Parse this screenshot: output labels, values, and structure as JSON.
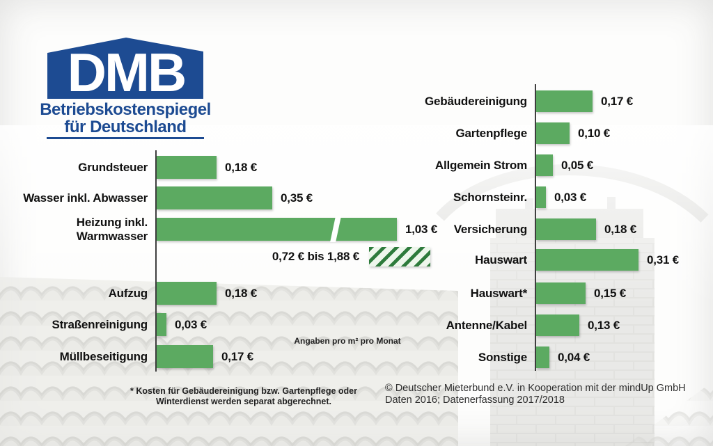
{
  "logo": {
    "acronym": "DMB",
    "line1": "Betriebskostenspiegel",
    "line2": "für Deutschland"
  },
  "colors": {
    "brand_blue": "#1d4b92",
    "bar_green": "#5caa61",
    "hatch_green_dark": "#2e7b3c",
    "hatch_green_light": "#eef7ec"
  },
  "chart_data": {
    "type": "bar",
    "orientation": "horizontal",
    "title": "Betriebskostenspiegel für Deutschland",
    "unit_note": "Angaben pro m² pro Monat",
    "xlabel": "",
    "ylabel": "",
    "grid": false,
    "legend": false,
    "charts": [
      {
        "name": "left",
        "rows": [
          {
            "label": "Grundsteuer",
            "value": 0.18,
            "display": "0,18 €"
          },
          {
            "label": "Wasser inkl. Abwasser",
            "value": 0.35,
            "display": "0,35 €"
          },
          {
            "label": "Heizung inkl.\nWarmwasser",
            "value": 1.03,
            "display": "1,03 €",
            "broken_axis": true
          },
          {
            "type": "range",
            "label": "",
            "display": "0,72 € bis 1,88 €",
            "min": 0.72,
            "max": 1.88
          },
          {
            "label": "Aufzug",
            "value": 0.18,
            "display": "0,18 €"
          },
          {
            "label": "Straßenreinigung",
            "value": 0.03,
            "display": "0,03 €"
          },
          {
            "label": "Müllbeseitigung",
            "value": 0.17,
            "display": "0,17 €"
          }
        ]
      },
      {
        "name": "right",
        "rows": [
          {
            "label": "Gebäudereinigung",
            "value": 0.17,
            "display": "0,17 €"
          },
          {
            "label": "Gartenpflege",
            "value": 0.1,
            "display": "0,10 €"
          },
          {
            "label": "Allgemein Strom",
            "value": 0.05,
            "display": "0,05 €"
          },
          {
            "label": "Schornsteinr.",
            "value": 0.03,
            "display": "0,03 €"
          },
          {
            "label": "Versicherung",
            "value": 0.18,
            "display": "0,18 €"
          },
          {
            "label": "Hauswart",
            "value": 0.31,
            "display": "0,31 €"
          },
          {
            "label": "Hauswart*",
            "value": 0.15,
            "display": "0,15 €"
          },
          {
            "label": "Antenne/Kabel",
            "value": 0.13,
            "display": "0,13 €"
          },
          {
            "label": "Sonstige",
            "value": 0.04,
            "display": "0,04 €"
          }
        ]
      }
    ]
  },
  "footnote": {
    "line1": "* Kosten für Gebäudereinigung bzw. Gartenpflege oder",
    "line2": "Winterdienst werden separat abgerechnet."
  },
  "copyright": {
    "line1": "© Deutscher Mieterbund e.V. in Kooperation mit der mindUp GmbH",
    "line2": "Daten 2016; Datenerfassung 2017/2018"
  }
}
